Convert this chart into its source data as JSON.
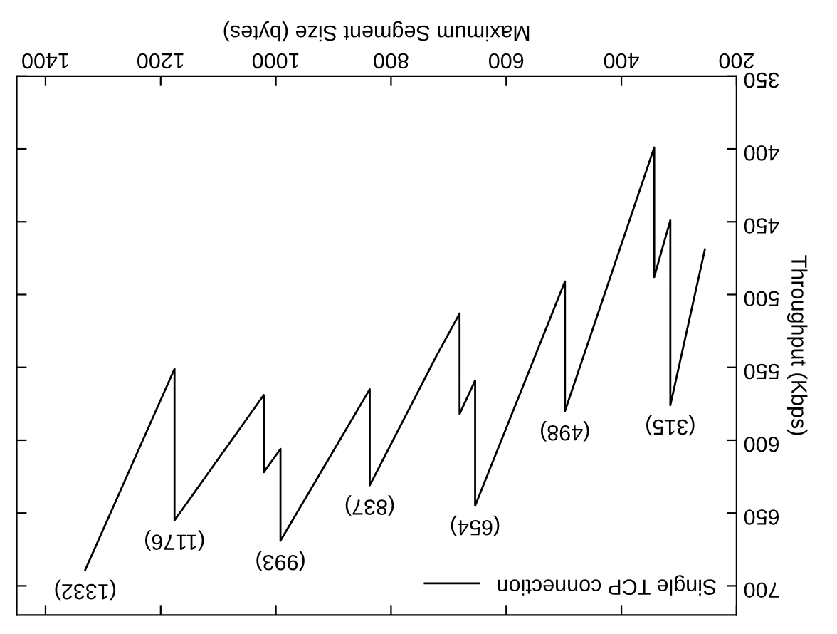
{
  "chart_data": {
    "type": "line",
    "xlabel": "Maximum Segment Size (bytes)",
    "ylabel": "Throughput (Kbps)",
    "xlim": [
      1450,
      200
    ],
    "xticks": [
      1400,
      1200,
      1000,
      800,
      600,
      400,
      200
    ],
    "ylim": [
      720,
      350
    ],
    "yticks": [
      350,
      400,
      450,
      500,
      550,
      600,
      650,
      700
    ],
    "series": [
      {
        "name": "Single TCP connection",
        "color": "#000000",
        "x": [
          1331,
          1176,
          1176,
          1021,
          1021,
          992,
          992,
          837,
          837,
          721,
          681,
          681,
          654,
          654,
          498,
          498,
          343,
          343,
          315,
          315,
          255
        ],
        "values": [
          689,
          551,
          655,
          569,
          622,
          606,
          669,
          565,
          631,
          542,
          513,
          582,
          559,
          645,
          491,
          580,
          399,
          488,
          449,
          576,
          469
        ]
      }
    ],
    "annotations": [
      {
        "text": "(1332)",
        "x": 1331,
        "y": 689
      },
      {
        "text": "(1176)",
        "x": 1176,
        "y": 655
      },
      {
        "text": "(993)",
        "x": 992,
        "y": 669
      },
      {
        "text": "(837)",
        "x": 837,
        "y": 631
      },
      {
        "text": "(654)",
        "x": 654,
        "y": 645
      },
      {
        "text": "(498)",
        "x": 498,
        "y": 580
      },
      {
        "text": "(315)",
        "x": 315,
        "y": 576
      }
    ],
    "legend": "bottom right",
    "grid": false,
    "marker": "none",
    "line_style": "solid"
  }
}
